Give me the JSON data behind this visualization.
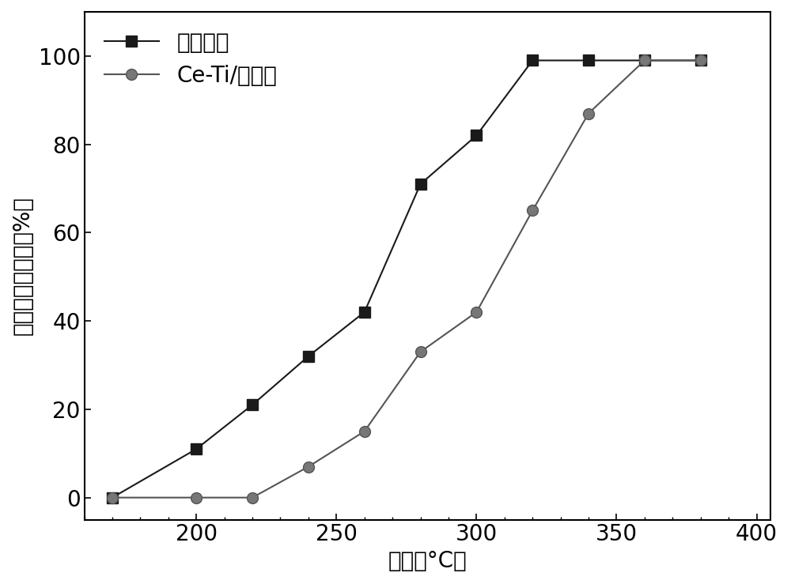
{
  "series1_label": "本催化剑",
  "series1_x": [
    170,
    200,
    220,
    240,
    260,
    280,
    300,
    320,
    340,
    360,
    380
  ],
  "series1_y": [
    0,
    11,
    21,
    32,
    42,
    71,
    82,
    99,
    99,
    99,
    99
  ],
  "series1_color": "#1a1a1a",
  "series1_marker": "s",
  "series2_label": "Ce-Ti/粉煤灰",
  "series2_x": [
    170,
    200,
    220,
    240,
    260,
    280,
    300,
    320,
    340,
    360,
    380
  ],
  "series2_y": [
    0,
    0,
    0,
    7,
    15,
    33,
    42,
    65,
    87,
    99,
    99
  ],
  "series2_color": "#555555",
  "series2_marker": "o",
  "xlabel": "温度（°C）",
  "ylabel": "二氯乙烷去除率（%）",
  "xlim": [
    160,
    405
  ],
  "ylim": [
    -5,
    110
  ],
  "xticks": [
    200,
    250,
    300,
    350,
    400
  ],
  "yticks": [
    0,
    20,
    40,
    60,
    80,
    100
  ],
  "line_width": 1.5,
  "marker_size": 10,
  "legend_fontsize": 20,
  "axis_fontsize": 20,
  "tick_fontsize": 20
}
